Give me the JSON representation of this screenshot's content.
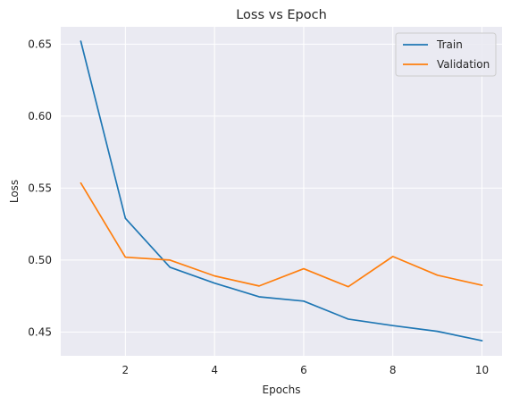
{
  "chart_data": {
    "type": "line",
    "title": "Loss vs Epoch",
    "xlabel": "Epochs",
    "ylabel": "Loss",
    "x": [
      1,
      2,
      3,
      4,
      5,
      6,
      7,
      8,
      9,
      10
    ],
    "xticks": [
      2,
      4,
      6,
      8,
      10
    ],
    "yticks": [
      0.45,
      0.5,
      0.55,
      0.6,
      0.65
    ],
    "ytick_labels": [
      "0.45",
      "0.50",
      "0.55",
      "0.60",
      "0.65"
    ],
    "xlim": [
      0.55,
      10.45
    ],
    "ylim": [
      0.4335,
      0.662
    ],
    "grid": true,
    "legend_position": "upper right",
    "series": [
      {
        "name": "Train",
        "color": "#1f77b4",
        "values": [
          0.652,
          0.529,
          0.495,
          0.484,
          0.4745,
          0.4715,
          0.459,
          0.4545,
          0.4505,
          0.444
        ]
      },
      {
        "name": "Validation",
        "color": "#ff7f0e",
        "values": [
          0.5535,
          0.502,
          0.5,
          0.489,
          0.482,
          0.494,
          0.4815,
          0.5025,
          0.4895,
          0.4825
        ]
      }
    ]
  }
}
